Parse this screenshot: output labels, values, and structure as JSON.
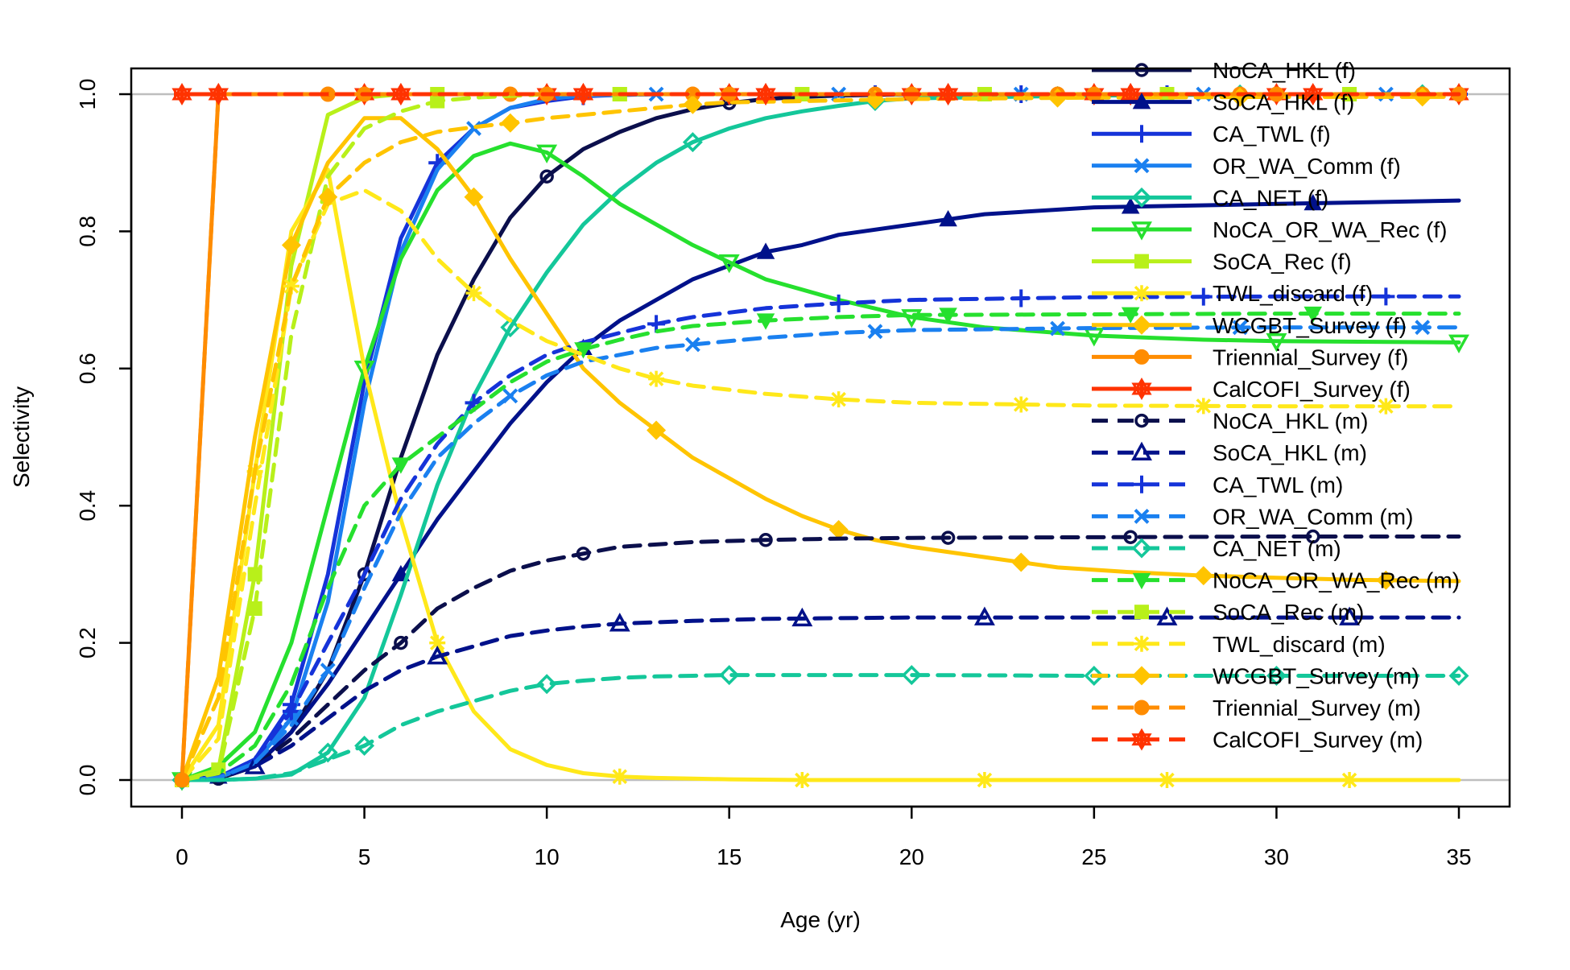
{
  "chart_data": {
    "type": "line",
    "xlabel": "Age (yr)",
    "ylabel": "Selectivity",
    "xlim": [
      0,
      35
    ],
    "ylim": [
      0,
      1
    ],
    "x_ticks": [
      0,
      5,
      10,
      15,
      20,
      25,
      30,
      35
    ],
    "y_ticks": [
      "0.0",
      "0.2",
      "0.4",
      "0.6",
      "0.8",
      "1.0"
    ],
    "reference_lines": [
      0,
      1
    ],
    "grid": false,
    "legend_position": "top-right",
    "series": [
      {
        "name": "NoCA_HKL (f)",
        "color": "#0b0f4c",
        "dash": "solid",
        "marker": "circle-open",
        "x": [
          0,
          1,
          2,
          3,
          4,
          5,
          6,
          7,
          8,
          9,
          10,
          11,
          12,
          13,
          14,
          15,
          16,
          17,
          18,
          19,
          20,
          25,
          30,
          35
        ],
        "values": [
          0,
          0.002,
          0.02,
          0.07,
          0.16,
          0.3,
          0.47,
          0.62,
          0.73,
          0.82,
          0.88,
          0.92,
          0.945,
          0.965,
          0.978,
          0.987,
          0.993,
          0.996,
          0.998,
          0.999,
          1,
          1,
          1,
          1
        ],
        "marker_x": [
          1,
          5,
          10,
          15,
          20,
          25,
          30,
          35
        ]
      },
      {
        "name": "SoCA_HKL (f)",
        "color": "#00118a",
        "dash": "solid",
        "marker": "triangle-filled",
        "x": [
          0,
          1,
          2,
          3,
          4,
          5,
          6,
          7,
          8,
          9,
          10,
          11,
          12,
          13,
          14,
          15,
          16,
          17,
          18,
          20,
          22,
          25,
          30,
          35
        ],
        "values": [
          0,
          0.005,
          0.02,
          0.07,
          0.14,
          0.22,
          0.3,
          0.38,
          0.45,
          0.52,
          0.58,
          0.63,
          0.67,
          0.7,
          0.73,
          0.75,
          0.77,
          0.78,
          0.795,
          0.81,
          0.825,
          0.835,
          0.84,
          0.845
        ],
        "marker_x": [
          1,
          6,
          11,
          16,
          21,
          26,
          31
        ]
      },
      {
        "name": "CA_TWL (f)",
        "color": "#1533d9",
        "dash": "solid",
        "marker": "plus",
        "x": [
          0,
          1,
          2,
          3,
          4,
          5,
          6,
          7,
          8,
          9,
          10,
          11,
          12,
          13,
          14,
          15,
          20,
          25,
          30,
          35
        ],
        "values": [
          0,
          0.004,
          0.03,
          0.11,
          0.3,
          0.58,
          0.79,
          0.9,
          0.95,
          0.98,
          0.99,
          0.997,
          0.999,
          1,
          1,
          1,
          1,
          1,
          1,
          1
        ],
        "marker_x": [
          0,
          3,
          7,
          11,
          15,
          19,
          23,
          27,
          31,
          35
        ]
      },
      {
        "name": "OR_WA_Comm (f)",
        "color": "#1a80f0",
        "dash": "solid",
        "marker": "x",
        "x": [
          0,
          1,
          2,
          3,
          4,
          5,
          6,
          7,
          8,
          9,
          10,
          11,
          12,
          13,
          14,
          15,
          20,
          25,
          30,
          35
        ],
        "values": [
          0,
          0.003,
          0.025,
          0.09,
          0.26,
          0.55,
          0.77,
          0.89,
          0.95,
          0.98,
          0.993,
          0.998,
          0.999,
          1,
          1,
          1,
          1,
          1,
          1,
          1
        ],
        "marker_x": [
          0,
          3,
          8,
          13,
          18,
          23,
          28,
          33
        ]
      },
      {
        "name": "CA_NET (f)",
        "color": "#14c79a",
        "dash": "solid",
        "marker": "diamond-open",
        "x": [
          0,
          1,
          2,
          3,
          4,
          5,
          6,
          7,
          8,
          9,
          10,
          11,
          12,
          13,
          14,
          15,
          16,
          17,
          18,
          19,
          20,
          25,
          30,
          35
        ],
        "values": [
          0,
          0,
          0.002,
          0.008,
          0.04,
          0.12,
          0.27,
          0.43,
          0.56,
          0.66,
          0.74,
          0.81,
          0.86,
          0.9,
          0.93,
          0.95,
          0.965,
          0.975,
          0.983,
          0.99,
          0.994,
          0.998,
          1,
          1
        ],
        "marker_x": [
          0,
          4,
          9,
          14,
          19,
          24,
          29,
          34
        ]
      },
      {
        "name": "NoCA_OR_WA_Rec (f)",
        "color": "#26e02e",
        "dash": "solid",
        "marker": "triangle-down-open",
        "x": [
          0,
          1,
          2,
          3,
          4,
          5,
          6,
          7,
          8,
          9,
          10,
          11,
          12,
          14,
          16,
          18,
          20,
          22,
          25,
          28,
          30,
          35
        ],
        "values": [
          0,
          0.02,
          0.07,
          0.2,
          0.4,
          0.6,
          0.76,
          0.86,
          0.91,
          0.928,
          0.915,
          0.88,
          0.84,
          0.78,
          0.73,
          0.7,
          0.675,
          0.66,
          0.648,
          0.642,
          0.64,
          0.638
        ],
        "marker_x": [
          0,
          5,
          10,
          15,
          20,
          25,
          30,
          35
        ]
      },
      {
        "name": "SoCA_Rec (f)",
        "color": "#b8f01a",
        "dash": "solid",
        "marker": "square-filled",
        "x": [
          0,
          1,
          2,
          3,
          4,
          5,
          6,
          7,
          8,
          9,
          10,
          15,
          20,
          25,
          30,
          35
        ],
        "values": [
          0,
          0.015,
          0.3,
          0.75,
          0.97,
          0.995,
          1,
          1,
          1,
          1,
          1,
          1,
          1,
          1,
          1,
          1
        ],
        "marker_x": [
          0,
          1,
          2,
          7,
          12,
          17,
          22,
          27,
          32
        ]
      },
      {
        "name": "TWL_discard (f)",
        "color": "#ffe81a",
        "dash": "solid",
        "marker": "star",
        "x": [
          0,
          1,
          2,
          3,
          4,
          5,
          6,
          7,
          8,
          9,
          10,
          11,
          12,
          13,
          14,
          15,
          17,
          20,
          25,
          30,
          35
        ],
        "values": [
          0,
          0.08,
          0.45,
          0.8,
          0.89,
          0.6,
          0.38,
          0.2,
          0.1,
          0.045,
          0.022,
          0.01,
          0.005,
          0.003,
          0.002,
          0.001,
          0,
          0,
          0,
          0,
          0
        ],
        "marker_x": [
          0,
          2,
          7,
          12,
          17,
          22,
          27,
          32
        ]
      },
      {
        "name": "WCGBT_Survey (f)",
        "color": "#ffc400",
        "dash": "solid",
        "marker": "diamond-filled",
        "x": [
          0,
          1,
          2,
          3,
          4,
          5,
          6,
          7,
          8,
          9,
          10,
          11,
          12,
          13,
          14,
          15,
          16,
          17,
          18,
          19,
          20,
          22,
          24,
          26,
          28,
          30,
          32,
          35
        ],
        "values": [
          0,
          0.15,
          0.5,
          0.78,
          0.9,
          0.965,
          0.965,
          0.92,
          0.85,
          0.76,
          0.68,
          0.6,
          0.55,
          0.51,
          0.47,
          0.44,
          0.41,
          0.385,
          0.365,
          0.35,
          0.34,
          0.325,
          0.31,
          0.303,
          0.298,
          0.295,
          0.292,
          0.29
        ],
        "marker_x": [
          0,
          3,
          8,
          13,
          18,
          23,
          28,
          33
        ]
      },
      {
        "name": "Triennial_Survey (f)",
        "color": "#ff8c00",
        "dash": "solid",
        "marker": "circle-filled",
        "x": [
          0,
          1,
          2,
          5,
          10,
          15,
          20,
          25,
          30,
          35
        ],
        "values": [
          0,
          1,
          1,
          1,
          1,
          1,
          1,
          1,
          1,
          1
        ],
        "marker_x": [
          0,
          4,
          9,
          14,
          19,
          24,
          29,
          34
        ]
      },
      {
        "name": "CalCOFI_Survey (f)",
        "color": "#ff3300",
        "dash": "solid",
        "marker": "asterisk",
        "x": [
          0,
          5,
          10,
          15,
          20,
          25,
          30,
          35
        ],
        "values": [
          1,
          1,
          1,
          1,
          1,
          1,
          1,
          1
        ],
        "marker_x": [
          0,
          1,
          5,
          6,
          10,
          11,
          15,
          16,
          20,
          21,
          25,
          26,
          30,
          35
        ]
      },
      {
        "name": "NoCA_HKL (m)",
        "color": "#0b0f4c",
        "dash": "dashed",
        "marker": "circle-open",
        "x": [
          0,
          1,
          2,
          3,
          4,
          5,
          6,
          7,
          8,
          9,
          10,
          11,
          12,
          14,
          16,
          18,
          20,
          25,
          30,
          35
        ],
        "values": [
          0,
          0.002,
          0.02,
          0.06,
          0.11,
          0.16,
          0.2,
          0.25,
          0.28,
          0.305,
          0.32,
          0.33,
          0.34,
          0.347,
          0.35,
          0.352,
          0.353,
          0.354,
          0.355,
          0.355
        ],
        "marker_x": [
          1,
          6,
          11,
          16,
          21,
          26,
          31
        ]
      },
      {
        "name": "SoCA_HKL (m)",
        "color": "#00118a",
        "dash": "dashed",
        "marker": "triangle-open",
        "x": [
          0,
          1,
          2,
          3,
          4,
          5,
          6,
          7,
          8,
          9,
          10,
          11,
          12,
          14,
          16,
          18,
          20,
          25,
          30,
          35
        ],
        "values": [
          0,
          0.003,
          0.02,
          0.05,
          0.09,
          0.13,
          0.16,
          0.18,
          0.195,
          0.21,
          0.218,
          0.224,
          0.228,
          0.232,
          0.235,
          0.236,
          0.237,
          0.237,
          0.237,
          0.237
        ],
        "marker_x": [
          2,
          7,
          12,
          17,
          22,
          27,
          32
        ]
      },
      {
        "name": "CA_TWL (m)",
        "color": "#1533d9",
        "dash": "dashed",
        "marker": "plus",
        "x": [
          0,
          1,
          2,
          3,
          4,
          5,
          6,
          7,
          8,
          9,
          10,
          11,
          12,
          13,
          14,
          16,
          18,
          20,
          25,
          30,
          35
        ],
        "values": [
          0,
          0.004,
          0.03,
          0.1,
          0.2,
          0.3,
          0.41,
          0.49,
          0.55,
          0.59,
          0.62,
          0.638,
          0.652,
          0.665,
          0.675,
          0.688,
          0.695,
          0.7,
          0.704,
          0.705,
          0.705
        ],
        "marker_x": [
          3,
          8,
          13,
          18,
          23,
          28,
          33
        ]
      },
      {
        "name": "OR_WA_Comm (m)",
        "color": "#1a80f0",
        "dash": "dashed",
        "marker": "x",
        "x": [
          0,
          1,
          2,
          3,
          4,
          5,
          6,
          7,
          8,
          9,
          10,
          11,
          12,
          13,
          14,
          16,
          18,
          20,
          25,
          30,
          35
        ],
        "values": [
          0,
          0.003,
          0.025,
          0.08,
          0.16,
          0.28,
          0.39,
          0.47,
          0.52,
          0.56,
          0.59,
          0.61,
          0.62,
          0.63,
          0.635,
          0.645,
          0.652,
          0.656,
          0.659,
          0.66,
          0.66
        ],
        "marker_x": [
          4,
          9,
          14,
          19,
          24,
          29,
          34
        ]
      },
      {
        "name": "CA_NET (m)",
        "color": "#14c79a",
        "dash": "dashed",
        "marker": "diamond-open",
        "x": [
          0,
          1,
          2,
          3,
          4,
          5,
          6,
          7,
          8,
          9,
          10,
          11,
          12,
          13,
          14,
          15,
          20,
          25,
          30,
          35
        ],
        "values": [
          0,
          0,
          0.002,
          0.01,
          0.03,
          0.05,
          0.08,
          0.1,
          0.115,
          0.13,
          0.14,
          0.145,
          0.149,
          0.151,
          0.152,
          0.153,
          0.153,
          0.152,
          0.152,
          0.152
        ],
        "marker_x": [
          0,
          5,
          10,
          15,
          20,
          25,
          30,
          35
        ]
      },
      {
        "name": "NoCA_OR_WA_Rec (m)",
        "color": "#26e02e",
        "dash": "dashed",
        "marker": "triangle-down-filled",
        "x": [
          0,
          1,
          2,
          3,
          4,
          5,
          6,
          7,
          8,
          9,
          10,
          11,
          12,
          13,
          14,
          16,
          18,
          20,
          25,
          30,
          35
        ],
        "values": [
          0,
          0.01,
          0.05,
          0.14,
          0.28,
          0.4,
          0.46,
          0.5,
          0.54,
          0.58,
          0.61,
          0.628,
          0.642,
          0.654,
          0.662,
          0.67,
          0.675,
          0.678,
          0.679,
          0.68,
          0.68
        ],
        "marker_x": [
          0,
          6,
          11,
          16,
          21,
          26,
          31
        ]
      },
      {
        "name": "SoCA_Rec (m)",
        "color": "#b8f01a",
        "dash": "dashed",
        "marker": "square-filled",
        "x": [
          0,
          1,
          2,
          3,
          4,
          5,
          6,
          7,
          8,
          10,
          15,
          20,
          25,
          30,
          35
        ],
        "values": [
          0,
          0.01,
          0.25,
          0.65,
          0.88,
          0.95,
          0.975,
          0.99,
          0.995,
          1,
          1,
          1,
          1,
          1,
          1
        ],
        "marker_x": [
          2,
          7,
          12,
          17,
          22,
          27,
          32
        ]
      },
      {
        "name": "TWL_discard (m)",
        "color": "#ffe81a",
        "dash": "dashed",
        "marker": "star",
        "x": [
          0,
          1,
          2,
          3,
          4,
          5,
          6,
          7,
          8,
          9,
          10,
          11,
          12,
          13,
          14,
          16,
          18,
          20,
          25,
          30,
          35
        ],
        "values": [
          0,
          0.06,
          0.4,
          0.72,
          0.84,
          0.86,
          0.83,
          0.76,
          0.71,
          0.67,
          0.64,
          0.62,
          0.6,
          0.585,
          0.575,
          0.563,
          0.555,
          0.55,
          0.546,
          0.545,
          0.545
        ],
        "marker_x": [
          3,
          8,
          13,
          18,
          23,
          28,
          33
        ]
      },
      {
        "name": "WCGBT_Survey (m)",
        "color": "#ffc400",
        "dash": "dashed",
        "marker": "diamond-filled",
        "x": [
          0,
          1,
          2,
          3,
          4,
          5,
          6,
          7,
          8,
          9,
          10,
          11,
          12,
          13,
          14,
          15,
          20,
          25,
          30,
          35
        ],
        "values": [
          0,
          0.12,
          0.45,
          0.72,
          0.85,
          0.9,
          0.93,
          0.945,
          0.952,
          0.958,
          0.965,
          0.97,
          0.975,
          0.98,
          0.985,
          0.988,
          0.993,
          0.995,
          0.996,
          0.996
        ],
        "marker_x": [
          4,
          9,
          14,
          19,
          24,
          29,
          34
        ]
      },
      {
        "name": "Triennial_Survey (m)",
        "color": "#ff8c00",
        "dash": "dashed",
        "marker": "circle-filled",
        "x": [
          0,
          1,
          2,
          5,
          10,
          15,
          20,
          25,
          30,
          35
        ],
        "values": [
          0,
          1,
          1,
          1,
          1,
          1,
          1,
          1,
          1,
          1
        ],
        "marker_x": [
          0,
          5,
          10,
          15,
          20,
          25,
          30,
          35
        ]
      },
      {
        "name": "CalCOFI_Survey (m)",
        "color": "#ff3300",
        "dash": "dashed",
        "marker": "asterisk",
        "x": [
          0,
          5,
          10,
          15,
          20,
          25,
          30,
          35
        ],
        "values": [
          1,
          1,
          1,
          1,
          1,
          1,
          1,
          1
        ],
        "marker_x": [
          1,
          6,
          11,
          16,
          21,
          26,
          31
        ]
      }
    ]
  }
}
